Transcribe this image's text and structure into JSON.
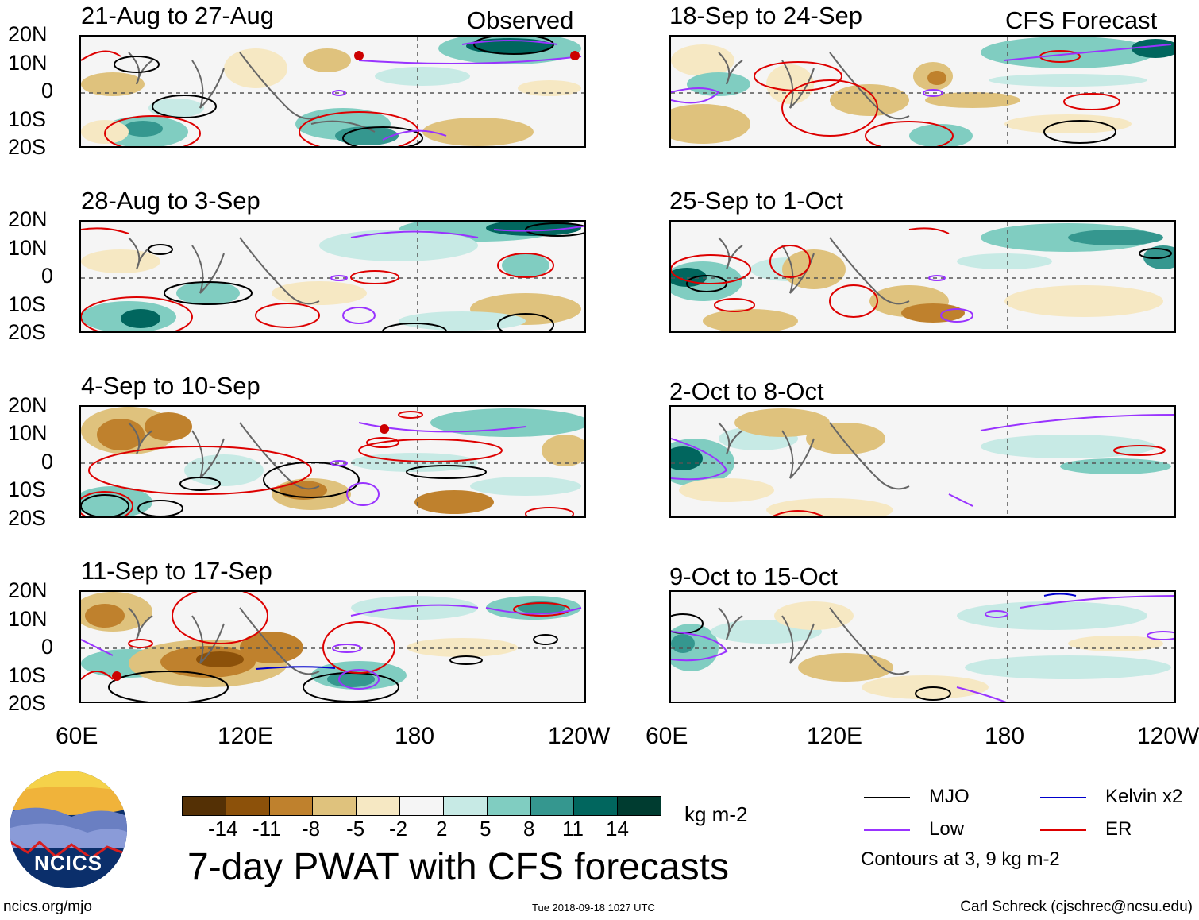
{
  "panels": [
    {
      "title": "21-Aug to 27-Aug",
      "tag": "Observed"
    },
    {
      "title": "18-Sep to 24-Sep",
      "tag": "CFS Forecast"
    },
    {
      "title": "28-Aug to 3-Sep",
      "tag": ""
    },
    {
      "title": "25-Sep to 1-Oct",
      "tag": ""
    },
    {
      "title": "4-Sep to 10-Sep",
      "tag": ""
    },
    {
      "title": "2-Oct to 8-Oct",
      "tag": ""
    },
    {
      "title": "11-Sep to 17-Sep",
      "tag": ""
    },
    {
      "title": "9-Oct to 15-Oct",
      "tag": ""
    }
  ],
  "lat_labels": [
    "20N",
    "10N",
    "0",
    "10S",
    "20S"
  ],
  "lon_labels": [
    "60E",
    "120E",
    "180",
    "120W"
  ],
  "colorbar": {
    "unit": "kg m-2",
    "labels": [
      "-14",
      "-11",
      "-8",
      "-5",
      "-2",
      "2",
      "5",
      "8",
      "11",
      "14"
    ],
    "colors": [
      "#543005",
      "#8c510a",
      "#bf812d",
      "#dfc27d",
      "#f6e8c3",
      "#f5f5f5",
      "#c7eae5",
      "#80cdc1",
      "#35978f",
      "#01665e",
      "#003c30"
    ]
  },
  "title": "7-day PWAT with CFS forecasts",
  "legend": {
    "items": [
      {
        "label": "MJO",
        "color": "#000000"
      },
      {
        "label": "Kelvin x2",
        "color": "#0000cc"
      },
      {
        "label": "Low",
        "color": "#9933ff"
      },
      {
        "label": "ER",
        "color": "#dd0000"
      }
    ],
    "note": "Contours at 3, 9 kg m-2"
  },
  "logo": {
    "text": "NCICS"
  },
  "footer": {
    "url": "ncics.org/mjo",
    "timestamp": "Tue 2018-09-18 1027 UTC",
    "credit": "Carl Schreck (cjschrec@ncsu.edu)"
  }
}
